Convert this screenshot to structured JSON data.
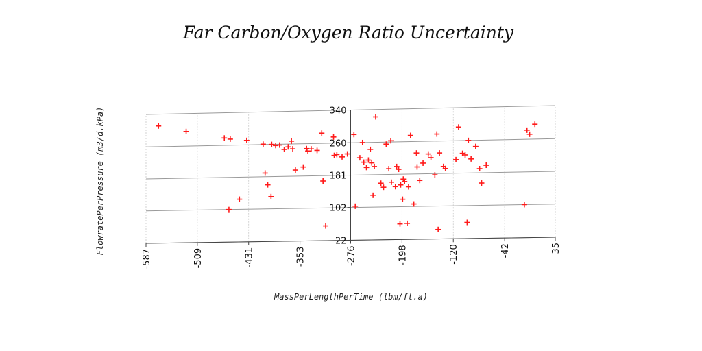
{
  "chart_data": {
    "type": "scatter",
    "title": "Far Carbon/Oxygen Ratio Uncertainty",
    "xlabel": "MassPerLengthPerTime (lbm/ft.a)",
    "ylabel": "FlowratePerPressure (m3/d.kPa)",
    "x_ticks": [
      "-587",
      "-509",
      "-431",
      "-353",
      "-276",
      "-198",
      "-120",
      "-42",
      "35"
    ],
    "y_ticks": [
      "22",
      "102",
      "181",
      "260",
      "340"
    ],
    "xlim": [
      -587,
      35
    ],
    "ylim": [
      22,
      340
    ],
    "grid": true,
    "marker_color": "#ff1a1a",
    "series": [
      {
        "points": [
          [
            -568,
            311
          ],
          [
            -526,
            296
          ],
          [
            -468,
            278
          ],
          [
            -459,
            275
          ],
          [
            -434,
            271
          ],
          [
            -461,
            102
          ],
          [
            -445,
            127
          ],
          [
            -406,
            190
          ],
          [
            -402,
            161
          ],
          [
            -397,
            132
          ],
          [
            -409,
            261
          ],
          [
            -396,
            260
          ],
          [
            -390,
            257
          ],
          [
            -384,
            258
          ],
          [
            -377,
            247
          ],
          [
            -371,
            253
          ],
          [
            -366,
            267
          ],
          [
            -364,
            248
          ],
          [
            -360,
            196
          ],
          [
            -348,
            203
          ],
          [
            -343,
            248
          ],
          [
            -341,
            242
          ],
          [
            -336,
            247
          ],
          [
            -327,
            243
          ],
          [
            -320,
            285
          ],
          [
            -318,
            168
          ],
          [
            -314,
            58
          ],
          [
            -302,
            275
          ],
          [
            -301,
            230
          ],
          [
            -297,
            232
          ],
          [
            -289,
            226
          ],
          [
            -281,
            233
          ],
          [
            -271,
            280
          ],
          [
            -269,
            105
          ],
          [
            -262,
            223
          ],
          [
            -258,
            260
          ],
          [
            -256,
            212
          ],
          [
            -252,
            199
          ],
          [
            -249,
            217
          ],
          [
            -246,
            243
          ],
          [
            -244,
            210
          ],
          [
            -242,
            131
          ],
          [
            -240,
            201
          ],
          [
            -238,
            322
          ],
          [
            -230,
            160
          ],
          [
            -226,
            150
          ],
          [
            -222,
            255
          ],
          [
            -218,
            195
          ],
          [
            -215,
            263
          ],
          [
            -214,
            162
          ],
          [
            -208,
            151
          ],
          [
            -206,
            200
          ],
          [
            -203,
            193
          ],
          [
            -201,
            60
          ],
          [
            -200,
            155
          ],
          [
            -197,
            120
          ],
          [
            -196,
            169
          ],
          [
            -194,
            163
          ],
          [
            -190,
            61
          ],
          [
            -188,
            150
          ],
          [
            -185,
            275
          ],
          [
            -180,
            108
          ],
          [
            -176,
            232
          ],
          [
            -175,
            198
          ],
          [
            -171,
            165
          ],
          [
            -166,
            207
          ],
          [
            -158,
            229
          ],
          [
            -154,
            220
          ],
          [
            -148,
            178
          ],
          [
            -145,
            277
          ],
          [
            -143,
            45
          ],
          [
            -141,
            231
          ],
          [
            -135,
            198
          ],
          [
            -132,
            193
          ],
          [
            -116,
            214
          ],
          [
            -112,
            293
          ],
          [
            -106,
            229
          ],
          [
            -102,
            225
          ],
          [
            -99,
            61
          ],
          [
            -97,
            260
          ],
          [
            -93,
            215
          ],
          [
            -86,
            245
          ],
          [
            -80,
            191
          ],
          [
            -77,
            156
          ],
          [
            -70,
            199
          ],
          [
            -8,
            282
          ],
          [
            -4,
            272
          ],
          [
            4,
            296
          ],
          [
            -12,
            102
          ]
        ]
      }
    ]
  }
}
